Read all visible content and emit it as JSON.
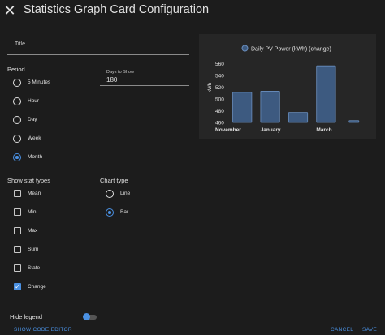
{
  "dialog": {
    "title": "Statistics Graph Card Configuration",
    "close_icon": "close-icon"
  },
  "form": {
    "title_field": {
      "label": "Title",
      "value": ""
    },
    "period": {
      "label": "Period",
      "options": [
        "5 Minutes",
        "Hour",
        "Day",
        "Week",
        "Month"
      ],
      "selected": "Month"
    },
    "days_to_show": {
      "label": "Days to Show",
      "value": "180"
    },
    "stat_types": {
      "label": "Show stat types",
      "options": [
        "Mean",
        "Min",
        "Max",
        "Sum",
        "State",
        "Change"
      ],
      "checked": [
        "Change"
      ]
    },
    "chart_type": {
      "label": "Chart type",
      "options": [
        "Line",
        "Bar"
      ],
      "selected": "Bar"
    },
    "hide_legend": {
      "label": "Hide legend",
      "value": true
    }
  },
  "preview": {
    "chart_data": {
      "type": "bar",
      "legend": "Daily PV Power (kWh) (change)",
      "ylabel": "kWh",
      "ylim": [
        460,
        570
      ],
      "yticks": [
        "560",
        "540",
        "520",
        "500",
        "480",
        "460"
      ],
      "xticks": [
        "November",
        "January",
        "March"
      ],
      "values": [
        511,
        513,
        477,
        556,
        463
      ],
      "bar_color": "#3d5a80",
      "bar_border": "#6a8fbf"
    }
  },
  "footer": {
    "code_editor_label": "SHOW CODE EDITOR",
    "cancel_label": "CANCEL",
    "save_label": "SAVE"
  },
  "colors": {
    "accent": "#4a90e2",
    "background": "#1c1c1c"
  }
}
